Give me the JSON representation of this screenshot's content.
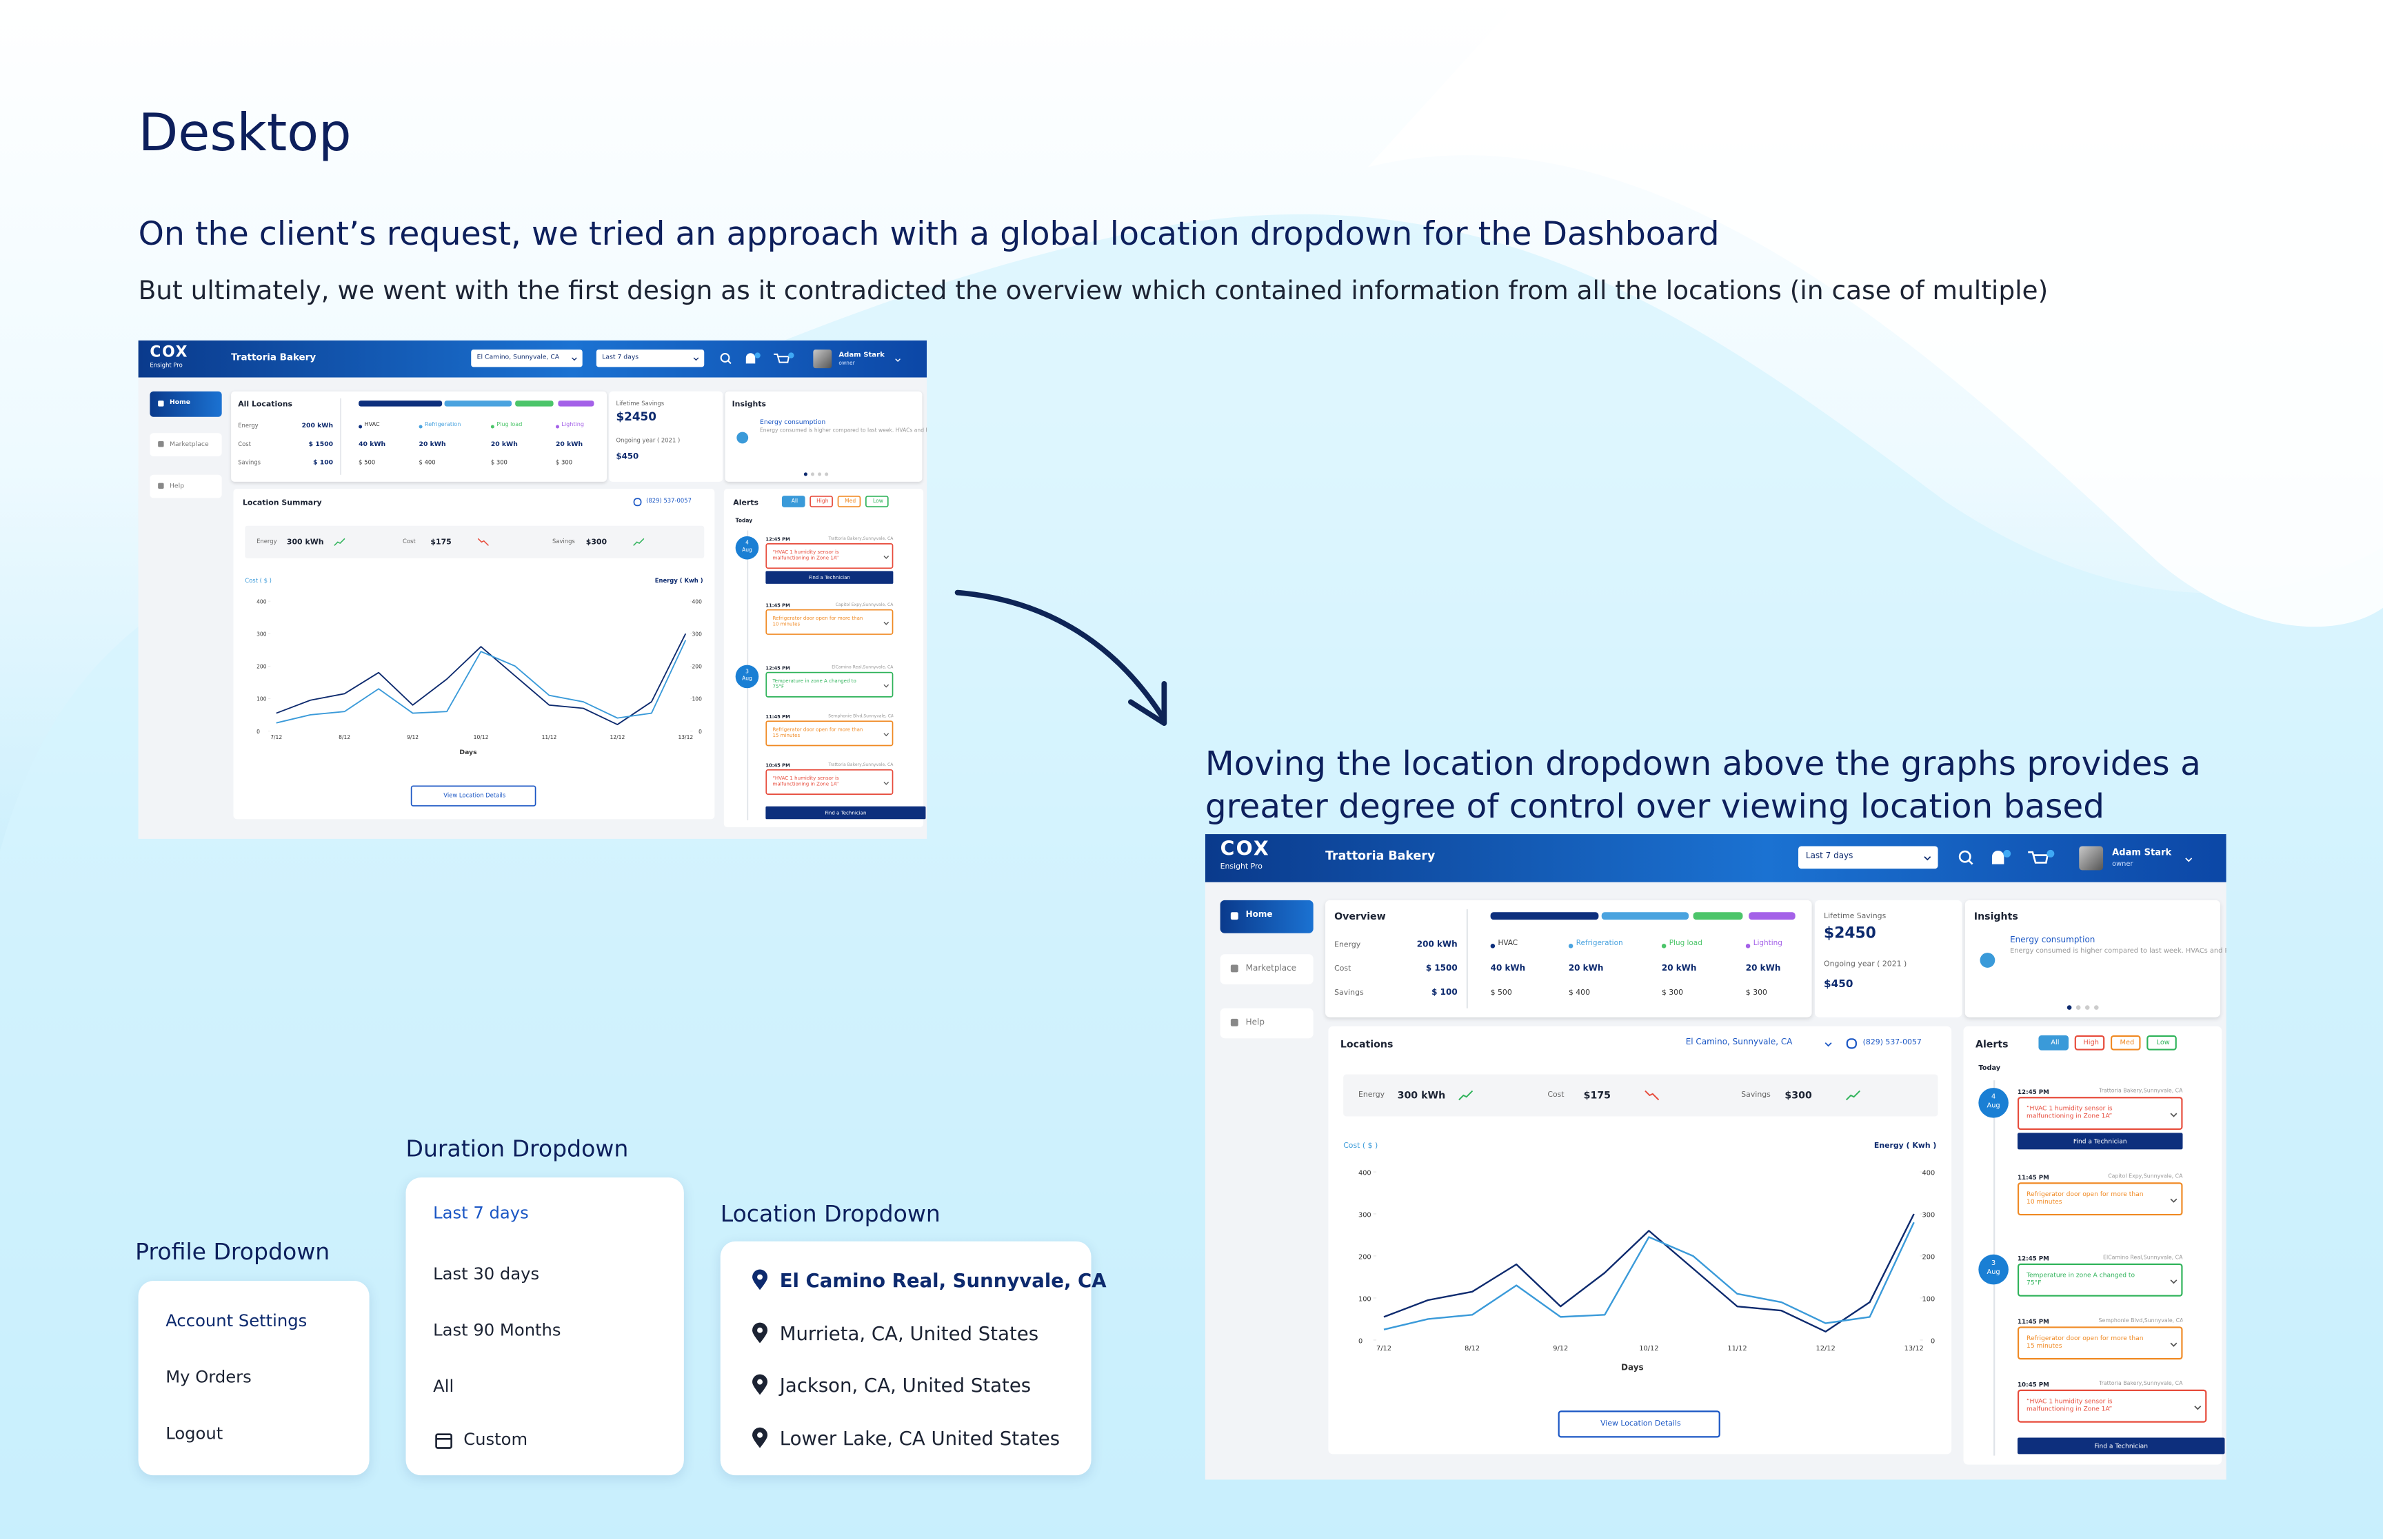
{
  "header": {
    "title": "Desktop",
    "subtitle": "On the client’s request, we tried an approach with a global location dropdown for the Dashboard",
    "note": "But ultimately, we went with the first design as it contradicted the overview which contained information from all the locations (in case of multiple)"
  },
  "caption": "Moving the location dropdown above the graphs provides a greater degree of control over viewing location based information",
  "dashboards": [
    {
      "brand": "COX",
      "brand_sub": "Ensight Pro",
      "business": "Trattoria Bakery",
      "location_select": "El Camino, Sunnyvale, CA",
      "duration_select": "Last 7 days",
      "user": "Adam Stark",
      "role": "owner",
      "nav": [
        "Home",
        "Marketplace",
        "Help"
      ],
      "overview": {
        "title": "All Locations",
        "rows": [
          "Energy",
          "Cost",
          "Savings"
        ],
        "totals": [
          "200 kWh",
          "$ 1500",
          "$ 100"
        ],
        "columns": [
          {
            "name": "HVAC",
            "color": "#0d2f7d",
            "energy": "40 kWh",
            "cost": "$ 500"
          },
          {
            "name": "Refrigeration",
            "color": "#4aa3df",
            "energy": "20 kWh",
            "cost": "$ 400"
          },
          {
            "name": "Plug load",
            "color": "#4cc56a",
            "energy": "20 kWh",
            "cost": "$ 300"
          },
          {
            "name": "Lighting",
            "color": "#a461e8",
            "energy": "20 kWh",
            "cost": "$ 300"
          }
        ]
      },
      "savings": {
        "title": "Lifetime Savings",
        "value": "$2450",
        "period": "Ongoing year ( 2021 )",
        "period_value": "$450"
      },
      "insights": {
        "title": "Insights",
        "heading": "Energy consumption",
        "text": "Energy consumed is higher compared to last week. HVACs and Refrigerators were contributed to this the most."
      },
      "summary": {
        "title": "Location Summary",
        "phone": "(829) 537-0057",
        "stats": [
          {
            "label": "Energy",
            "value": "300 kWh",
            "trend": "up"
          },
          {
            "label": "Cost",
            "value": "$175",
            "trend": "down"
          },
          {
            "label": "Savings",
            "value": "$300",
            "trend": "up"
          }
        ],
        "button": "View Location Details"
      },
      "chart_data": {
        "type": "line",
        "ylabel": "Cost ( $ )",
        "y2label": "Energy ( Kwh )",
        "xlabel": "Days",
        "categories": [
          "7/12",
          null,
          "8/12",
          null,
          "9/12",
          null,
          "10/12",
          null,
          "11/12",
          null,
          "12/12",
          null,
          "13/12"
        ],
        "ylim": [
          0,
          400
        ],
        "yticks": [
          0,
          100,
          200,
          300,
          400
        ],
        "y2lim": [
          0,
          400
        ],
        "y2ticks": [
          0,
          100,
          200,
          300,
          400
        ],
        "series": [
          {
            "name": "Energy",
            "color": "#0d2a6e",
            "values": [
              55,
              95,
              115,
              180,
              80,
              160,
              260,
              170,
              80,
              70,
              20,
              90,
              300
            ]
          },
          {
            "name": "Cost",
            "color": "#3a9ad9",
            "axis": "y2",
            "values": [
              25,
              50,
              60,
              130,
              55,
              60,
              245,
              200,
              110,
              90,
              40,
              55,
              280
            ]
          }
        ]
      },
      "alerts": {
        "title": "Alerts",
        "filters": [
          "All",
          "High",
          "Med",
          "Low"
        ],
        "today": "Today",
        "button": "Find a Technician",
        "items": [
          {
            "day": "4",
            "month": "Aug",
            "time": "12:45 PM",
            "place": "Trattoria Bakery,Sunnyvale, CA",
            "text": "“HVAC 1 humidity sensor is malfunctioning in Zone 1A”",
            "level": "high"
          },
          {
            "time": "11:45 PM",
            "place": "Capitol Expy,Sunnyvale, CA",
            "text": "Refrigerator door open for more than 10 minutes",
            "level": "med"
          },
          {
            "day": "3",
            "month": "Aug",
            "time": "12:45 PM",
            "place": "ElCamino Real,Sunnyvale, CA",
            "text": "Temperature in zone A changed to 75°F",
            "level": "low"
          },
          {
            "time": "11:45 PM",
            "place": "Semphonie Blvd,Sunnyvale, CA",
            "text": "Refrigerator door open for more than 15 minutes",
            "level": "med"
          },
          {
            "time": "10:45 PM",
            "place": "Trattoria Bakery,Sunnyvale, CA",
            "text": "“HVAC 1 humidity sensor is malfunctioning in Zone 1A”",
            "level": "high"
          }
        ]
      }
    },
    {
      "brand": "COX",
      "brand_sub": "Ensight Pro",
      "business": "Trattoria Bakery",
      "duration_select": "Last 7 days",
      "user": "Adam Stark",
      "role": "owner",
      "nav": [
        "Home",
        "Marketplace",
        "Help"
      ],
      "overview": {
        "title": "Overview",
        "rows": [
          "Energy",
          "Cost",
          "Savings"
        ],
        "totals": [
          "200 kWh",
          "$ 1500",
          "$ 100"
        ],
        "columns": [
          {
            "name": "HVAC",
            "color": "#0d2f7d",
            "energy": "40 kWh",
            "cost": "$ 500"
          },
          {
            "name": "Refrigeration",
            "color": "#4aa3df",
            "energy": "20 kWh",
            "cost": "$ 400"
          },
          {
            "name": "Plug load",
            "color": "#4cc56a",
            "energy": "20 kWh",
            "cost": "$ 300"
          },
          {
            "name": "Lighting",
            "color": "#a461e8",
            "energy": "20 kWh",
            "cost": "$ 300"
          }
        ]
      },
      "savings": {
        "title": "Lifetime Savings",
        "value": "$2450",
        "period": "Ongoing year ( 2021 )",
        "period_value": "$450"
      },
      "insights": {
        "title": "Insights",
        "heading": "Energy consumption",
        "text": "Energy consumed is higher compared to last week. HVACs and Refrigerators were contributed to this the most."
      },
      "summary": {
        "title": "Locations",
        "location_select": "El Camino, Sunnyvale, CA",
        "phone": "(829) 537-0057",
        "stats": [
          {
            "label": "Energy",
            "value": "300 kWh",
            "trend": "up"
          },
          {
            "label": "Cost",
            "value": "$175",
            "trend": "down"
          },
          {
            "label": "Savings",
            "value": "$300",
            "trend": "up"
          }
        ],
        "button": "View Location Details"
      },
      "chart_data": {
        "type": "line",
        "ylabel": "Cost ( $ )",
        "y2label": "Energy ( Kwh )",
        "xlabel": "Days",
        "categories": [
          "7/12",
          null,
          "8/12",
          null,
          "9/12",
          null,
          "10/12",
          null,
          "11/12",
          null,
          "12/12",
          null,
          "13/12"
        ],
        "ylim": [
          0,
          400
        ],
        "yticks": [
          0,
          100,
          200,
          300,
          400
        ],
        "y2lim": [
          0,
          400
        ],
        "y2ticks": [
          0,
          100,
          200,
          300,
          400
        ],
        "series": [
          {
            "name": "Energy",
            "color": "#0d2a6e",
            "values": [
              55,
              95,
              115,
              180,
              80,
              160,
              260,
              170,
              80,
              70,
              20,
              90,
              300
            ]
          },
          {
            "name": "Cost",
            "color": "#3a9ad9",
            "axis": "y2",
            "values": [
              25,
              50,
              60,
              130,
              55,
              60,
              245,
              200,
              110,
              90,
              40,
              55,
              280
            ]
          }
        ]
      },
      "alerts": {
        "title": "Alerts",
        "filters": [
          "All",
          "High",
          "Med",
          "Low"
        ],
        "today": "Today",
        "button": "Find a Technician",
        "items": [
          {
            "day": "4",
            "month": "Aug",
            "time": "12:45 PM",
            "place": "Trattoria Bakery,Sunnyvale, CA",
            "text": "“HVAC 1 humidity sensor is malfunctioning in Zone 1A”",
            "level": "high"
          },
          {
            "time": "11:45 PM",
            "place": "Capitol Expy,Sunnyvale, CA",
            "text": "Refrigerator door open for more than 10 minutes",
            "level": "med"
          },
          {
            "day": "3",
            "month": "Aug",
            "time": "12:45 PM",
            "place": "ElCamino Real,Sunnyvale, CA",
            "text": "Temperature in zone A changed to 75°F",
            "level": "low"
          },
          {
            "time": "11:45 PM",
            "place": "Semphonie Blvd,Sunnyvale, CA",
            "text": "Refrigerator door open for more than 15 minutes",
            "level": "med"
          },
          {
            "time": "10:45 PM",
            "place": "Trattoria Bakery,Sunnyvale, CA",
            "text": "“HVAC 1 humidity sensor is malfunctioning in Zone 1A”",
            "level": "high"
          }
        ]
      }
    }
  ],
  "profile_dropdown": {
    "title": "Profile Dropdown",
    "items": [
      "Account Settings",
      "My Orders",
      "Logout"
    ]
  },
  "duration_dropdown": {
    "title": "Duration Dropdown",
    "items": [
      "Last 7 days",
      "Last 30 days",
      "Last 90 Months",
      "All",
      "Custom"
    ]
  },
  "location_dropdown": {
    "title": "Location Dropdown",
    "items": [
      "El Camino Real, Sunnyvale, CA",
      "Murrieta, CA, United States",
      "Jackson, CA, United States",
      "Lower Lake, CA United States"
    ]
  }
}
